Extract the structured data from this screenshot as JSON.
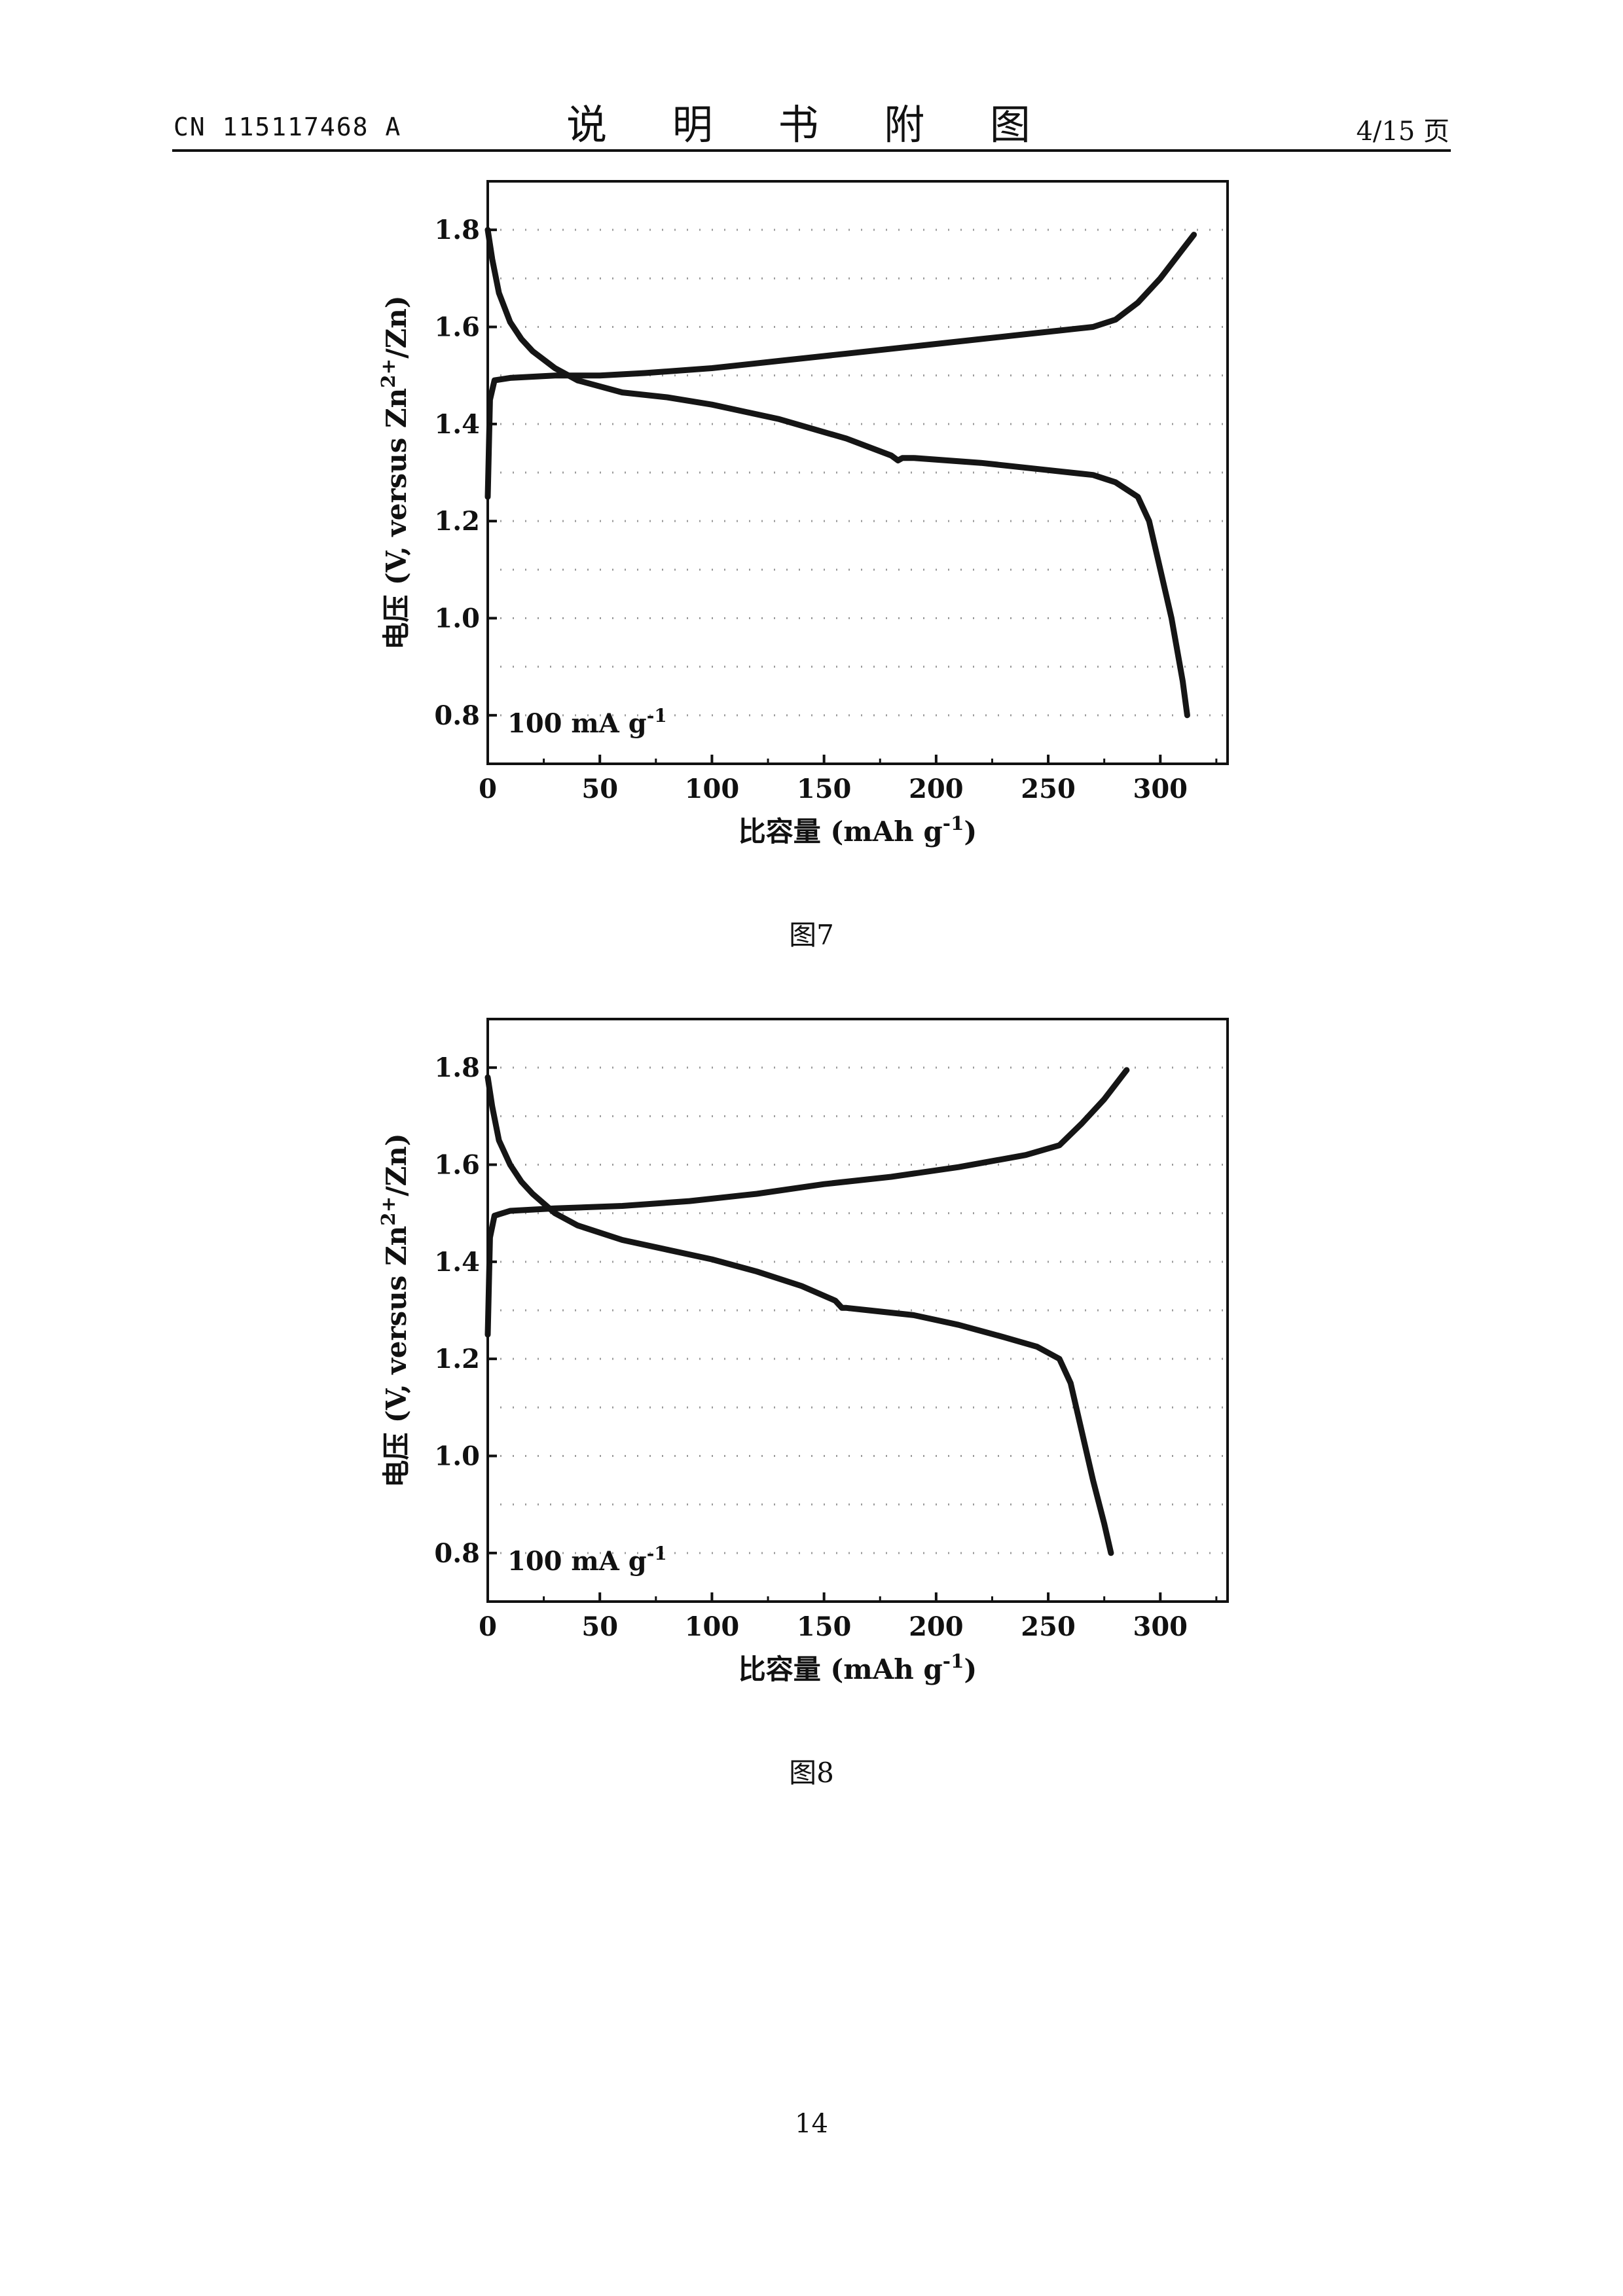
{
  "header": {
    "doc_number": "CN 115117468 A",
    "section_title": "说 明 书 附 图",
    "page_of": "4/15 页"
  },
  "figures": [
    {
      "caption": "图7"
    },
    {
      "caption": "图8"
    }
  ],
  "page_number": "14",
  "chart_data": [
    {
      "type": "line",
      "title": "",
      "xlabel": "比容量 (mAh g-1)",
      "ylabel": "电压 (V, versus Zn2+/Zn)",
      "xlim": [
        0,
        330
      ],
      "ylim": [
        0.7,
        1.9
      ],
      "xticks": [
        0,
        50,
        100,
        150,
        200,
        250,
        300
      ],
      "yticks": [
        0.8,
        1.0,
        1.2,
        1.4,
        1.6,
        1.8
      ],
      "grid": true,
      "annotation": "100 mA g-1",
      "series": [
        {
          "x": [
            0,
            1,
            3,
            10,
            30,
            50,
            70,
            100,
            130,
            160,
            190,
            220,
            250,
            270,
            280,
            290,
            300,
            310,
            315
          ],
          "y": [
            1.25,
            1.45,
            1.49,
            1.495,
            1.5,
            1.5,
            1.505,
            1.515,
            1.53,
            1.545,
            1.56,
            1.575,
            1.59,
            1.6,
            1.615,
            1.65,
            1.7,
            1.76,
            1.79
          ]
        },
        {
          "x": [
            0,
            2,
            5,
            10,
            15,
            20,
            30,
            40,
            60,
            80,
            100,
            130,
            160,
            180,
            183,
            185,
            190,
            220,
            250,
            270,
            280,
            290,
            295,
            300,
            305,
            310,
            312
          ],
          "y": [
            1.8,
            1.74,
            1.67,
            1.61,
            1.575,
            1.55,
            1.515,
            1.49,
            1.465,
            1.455,
            1.44,
            1.41,
            1.37,
            1.335,
            1.325,
            1.33,
            1.33,
            1.32,
            1.305,
            1.295,
            1.28,
            1.25,
            1.2,
            1.1,
            1.0,
            0.87,
            0.8
          ]
        }
      ]
    },
    {
      "type": "line",
      "title": "",
      "xlabel": "比容量 (mAh g-1)",
      "ylabel": "电压 (V, versus Zn2+/Zn)",
      "xlim": [
        0,
        330
      ],
      "ylim": [
        0.7,
        1.9
      ],
      "xticks": [
        0,
        50,
        100,
        150,
        200,
        250,
        300
      ],
      "yticks": [
        0.8,
        1.0,
        1.2,
        1.4,
        1.6,
        1.8
      ],
      "grid": true,
      "annotation": "100 mA g-1",
      "series": [
        {
          "x": [
            0,
            1,
            3,
            10,
            30,
            60,
            90,
            120,
            150,
            180,
            210,
            240,
            255,
            265,
            275,
            285
          ],
          "y": [
            1.25,
            1.45,
            1.495,
            1.505,
            1.51,
            1.515,
            1.525,
            1.54,
            1.56,
            1.575,
            1.595,
            1.62,
            1.64,
            1.685,
            1.735,
            1.795
          ]
        },
        {
          "x": [
            0,
            2,
            5,
            10,
            15,
            20,
            30,
            40,
            60,
            80,
            100,
            120,
            140,
            155,
            158,
            160,
            170,
            190,
            210,
            230,
            245,
            255,
            260,
            265,
            270,
            275,
            278
          ],
          "y": [
            1.78,
            1.72,
            1.65,
            1.6,
            1.565,
            1.54,
            1.5,
            1.475,
            1.445,
            1.425,
            1.405,
            1.38,
            1.35,
            1.32,
            1.305,
            1.305,
            1.3,
            1.29,
            1.27,
            1.245,
            1.225,
            1.2,
            1.15,
            1.05,
            0.95,
            0.86,
            0.8
          ]
        }
      ]
    }
  ]
}
